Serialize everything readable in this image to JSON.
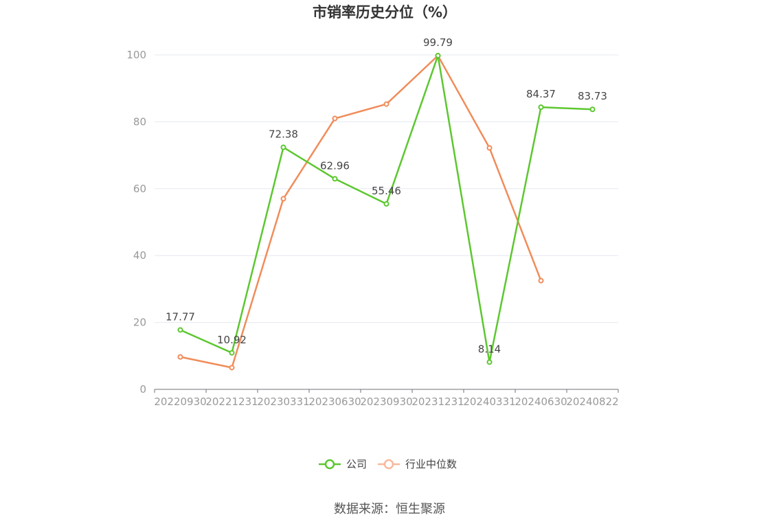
{
  "chart_data": {
    "type": "line",
    "title": "市销率历史分位（%）",
    "categories": [
      "20220930",
      "20221231",
      "20230331",
      "20230630",
      "20230930",
      "20231231",
      "20240331",
      "20240630",
      "20240822"
    ],
    "ylim": [
      0,
      100
    ],
    "yticks": [
      0,
      20,
      40,
      60,
      80,
      100
    ],
    "grid": true,
    "legend": "bottom",
    "series": [
      {
        "name": "公司",
        "color": "#5cc72f",
        "values": [
          17.77,
          10.92,
          72.38,
          62.96,
          55.46,
          99.79,
          8.14,
          84.37,
          83.73
        ],
        "labels": [
          "17.77",
          "10.92",
          "72.38",
          "62.96",
          "55.46",
          "99.79",
          "8.14",
          "84.37",
          "83.73"
        ]
      },
      {
        "name": "行业中位数",
        "color": "#f08c5a",
        "values": [
          9.7,
          6.5,
          57.0,
          81.0,
          85.3,
          99.79,
          72.2,
          32.5,
          null
        ]
      }
    ]
  },
  "legend": {
    "company": "公司",
    "industry": "行业中位数",
    "industry_color": "#f7b89b"
  },
  "source": "数据来源：恒生聚源"
}
